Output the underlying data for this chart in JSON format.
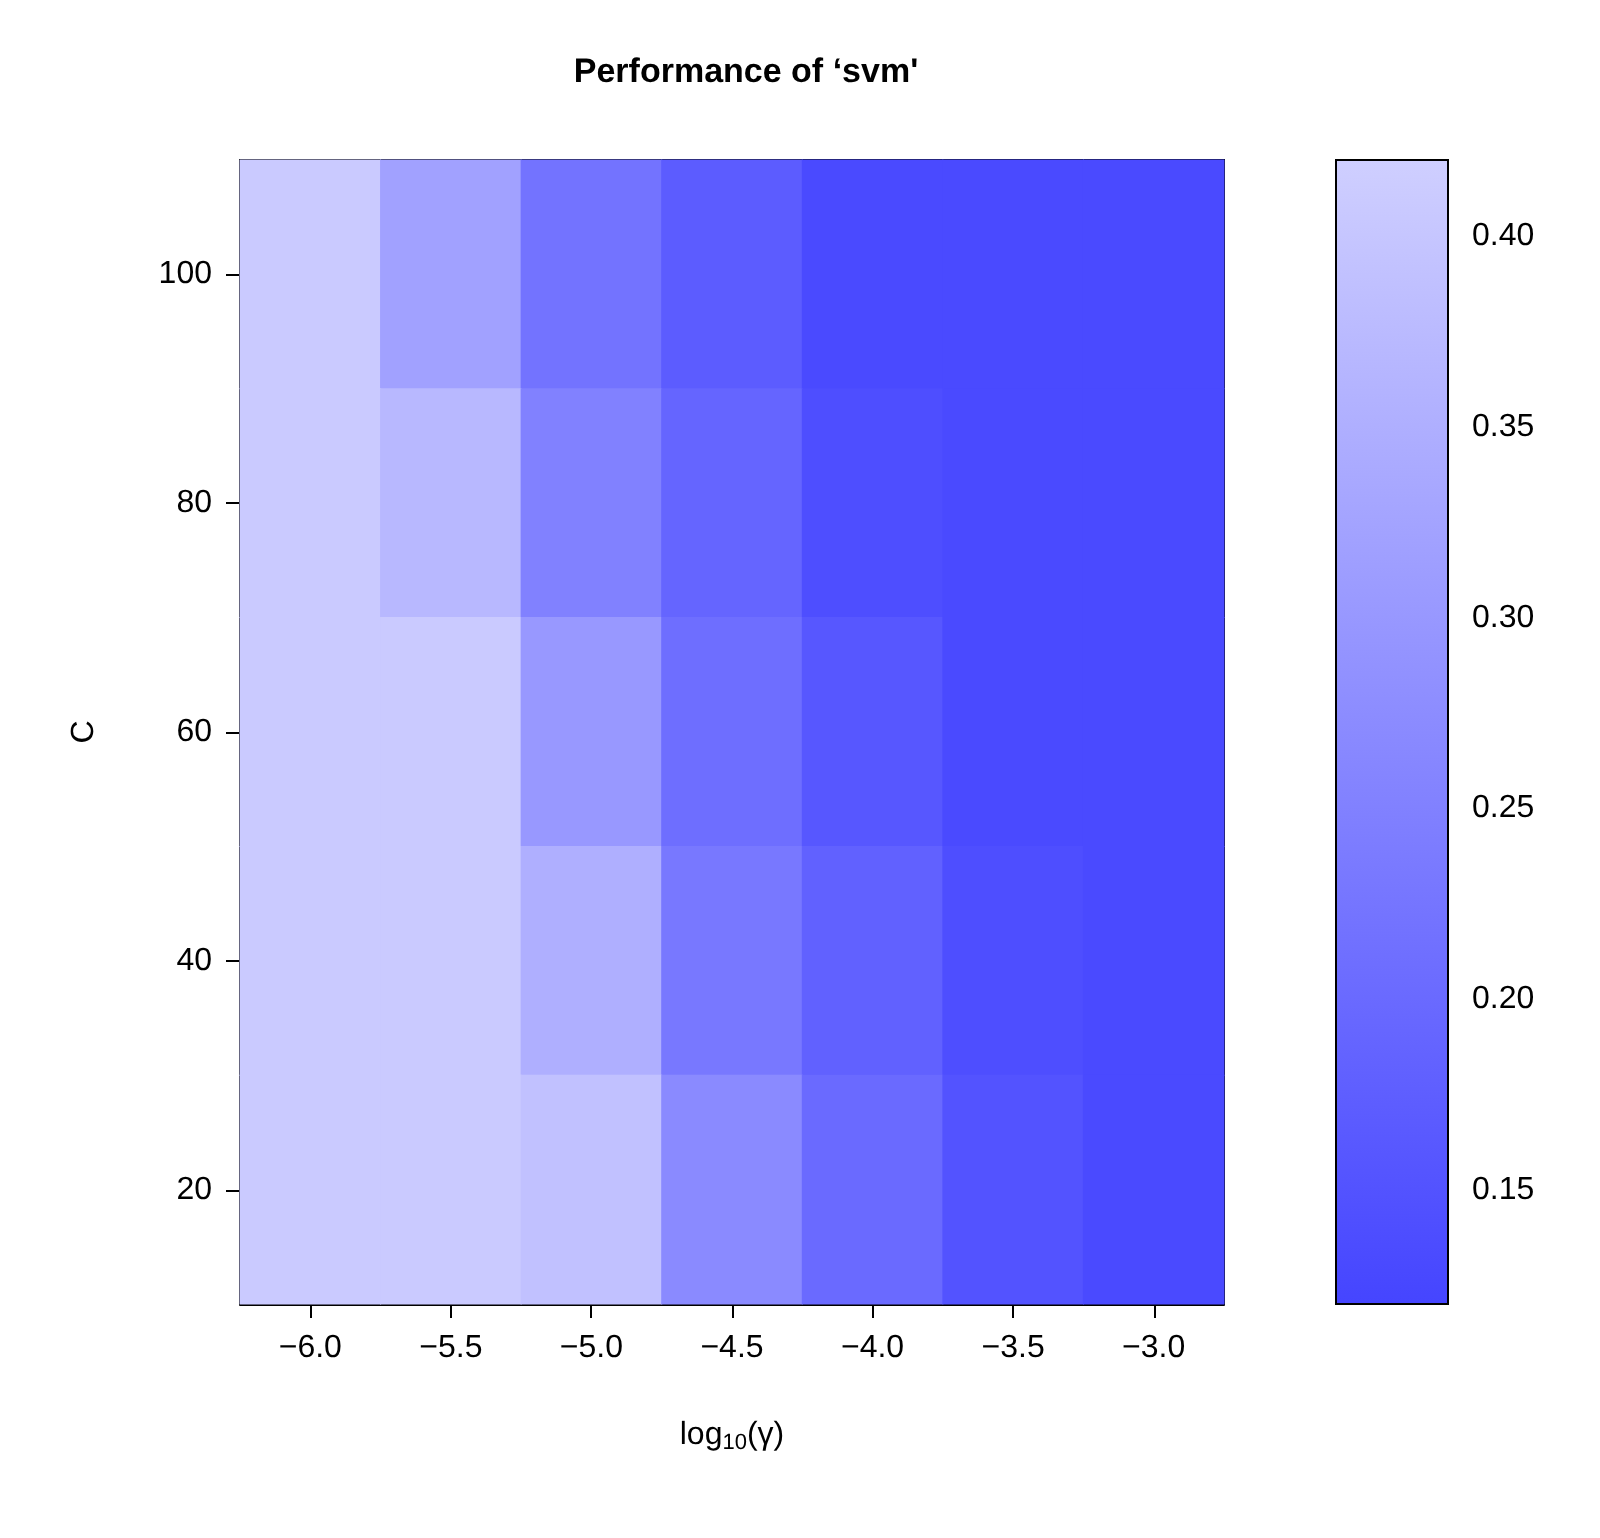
{
  "chart_data": {
    "type": "heatmap",
    "title": "Performance of ‘svm'",
    "xlabel": "log$_{10}$(γ)",
    "ylabel": "C",
    "categories": [
      "−6.0",
      "−5.5",
      "−5.0",
      "−4.5",
      "−4.0",
      "−3.5",
      "−3.0"
    ],
    "y_categories": [
      "100",
      "80",
      "60",
      "40",
      "20"
    ],
    "cells": [
      [
        0.41,
        0.32,
        0.22,
        0.17,
        0.13,
        0.13,
        0.13
      ],
      [
        0.41,
        0.37,
        0.25,
        0.19,
        0.14,
        0.13,
        0.13
      ],
      [
        0.41,
        0.41,
        0.3,
        0.21,
        0.16,
        0.13,
        0.13
      ],
      [
        0.41,
        0.41,
        0.35,
        0.23,
        0.18,
        0.14,
        0.13
      ],
      [
        0.41,
        0.41,
        0.39,
        0.27,
        0.2,
        0.15,
        0.13
      ]
    ],
    "clim": [
      0.12,
      0.42
    ],
    "cticks": [
      {
        "value": 0.15,
        "label": "0.15"
      },
      {
        "value": 0.2,
        "label": "0.20"
      },
      {
        "value": 0.25,
        "label": "0.25"
      },
      {
        "value": 0.3,
        "label": "0.30"
      },
      {
        "value": 0.35,
        "label": "0.35"
      },
      {
        "value": 0.4,
        "label": "0.40"
      }
    ]
  }
}
